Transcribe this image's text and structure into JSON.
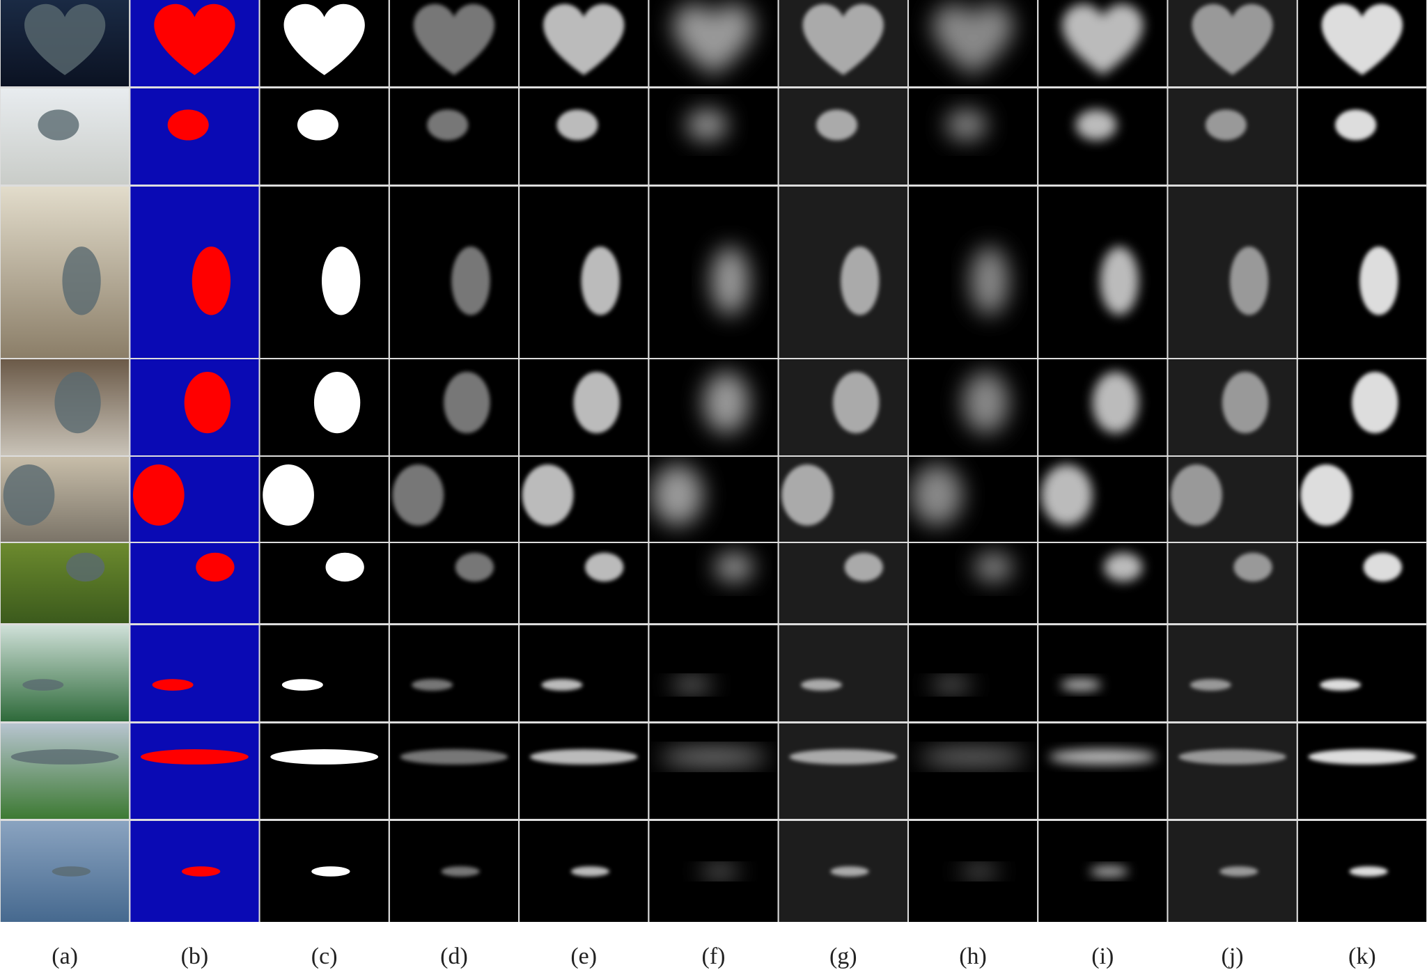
{
  "figure": {
    "panel_labels": [
      "(a)",
      "(b)",
      "(c)",
      "(d)",
      "(e)",
      "(f)",
      "(g)",
      "(h)",
      "(i)",
      "(j)",
      "(k)"
    ]
  }
}
